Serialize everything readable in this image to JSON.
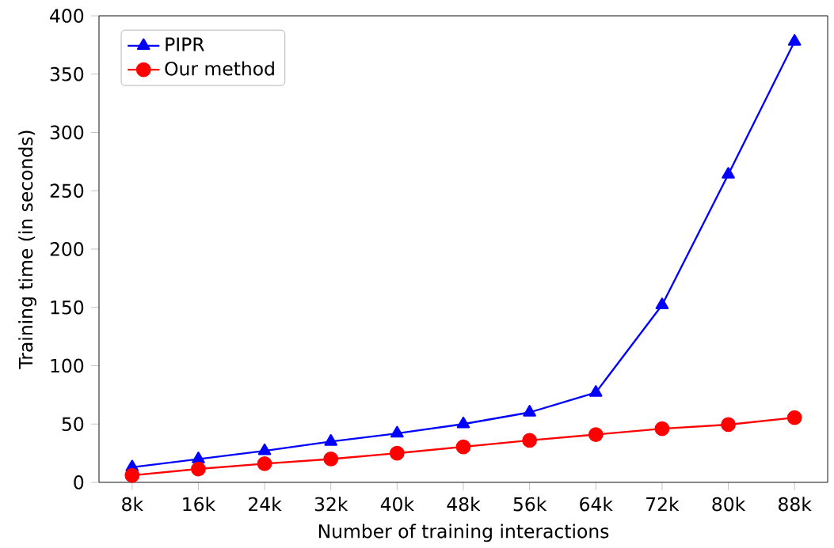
{
  "chart_data": {
    "type": "line",
    "xlabel": "Number of training interactions",
    "ylabel": "Training time (in seconds)",
    "categories": [
      "8k",
      "16k",
      "24k",
      "32k",
      "40k",
      "48k",
      "56k",
      "64k",
      "72k",
      "80k",
      "88k"
    ],
    "series": [
      {
        "name": "PIPR",
        "color": "#0000ff",
        "marker": "triangle",
        "values": [
          13,
          20,
          27,
          35,
          42,
          50,
          60,
          77,
          152,
          264,
          378
        ]
      },
      {
        "name": "Our method",
        "color": "#ff0000",
        "marker": "circle",
        "values": [
          6,
          11.5,
          16,
          20,
          25,
          30.5,
          36,
          41,
          46,
          49.5,
          55.5
        ]
      }
    ],
    "ylim": [
      0,
      400
    ],
    "yticks": [
      0,
      50,
      100,
      150,
      200,
      250,
      300,
      350,
      400
    ],
    "grid": false,
    "legend": "top left",
    "line_style": "solid"
  }
}
